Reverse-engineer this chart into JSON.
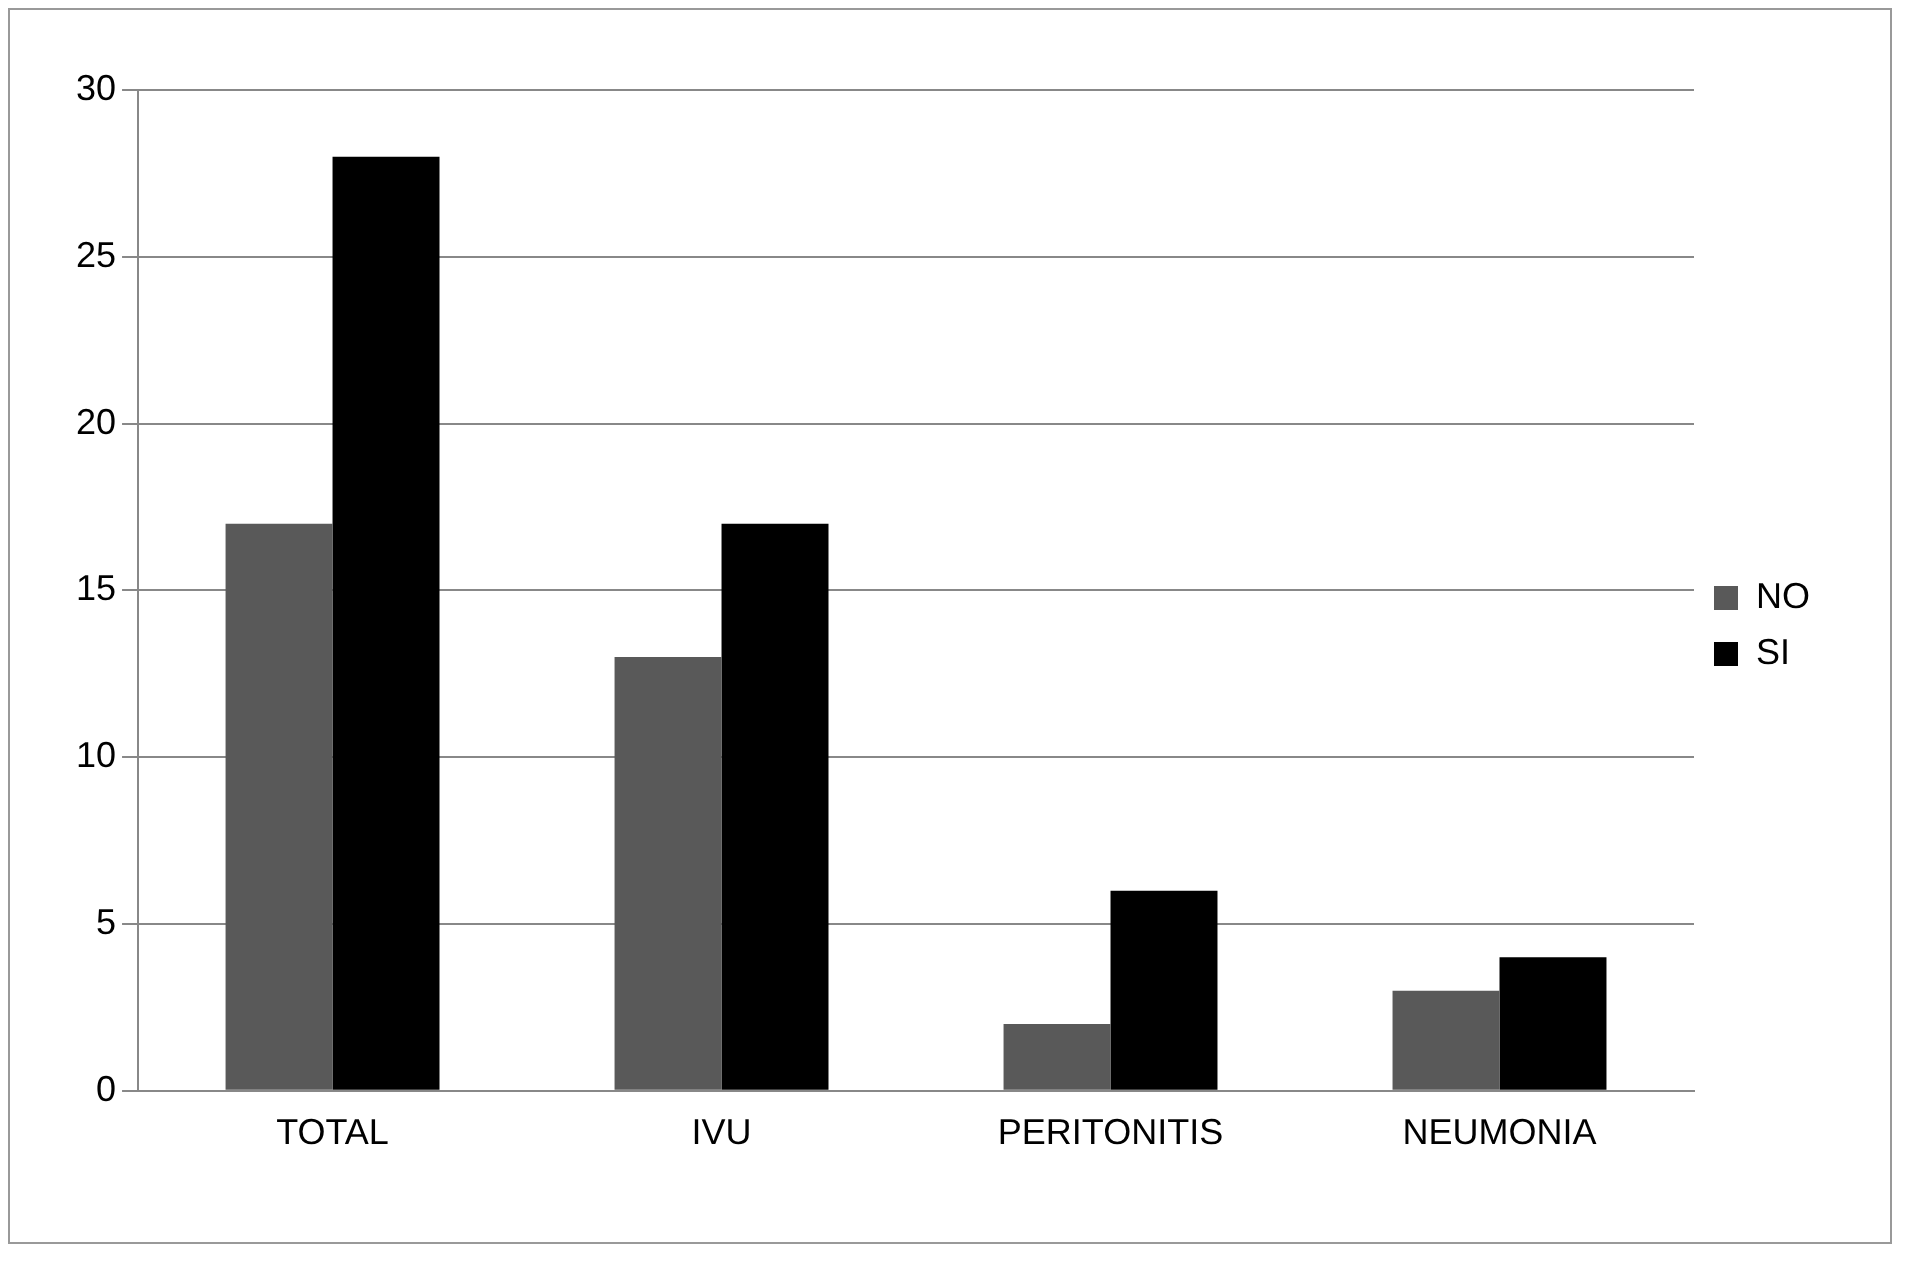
{
  "chart_data": {
    "type": "bar",
    "categories": [
      "TOTAL",
      "IVU",
      "PERITONITIS",
      "NEUMONIA"
    ],
    "series": [
      {
        "name": "NO",
        "color": "#595959",
        "values": [
          17,
          13,
          2,
          3
        ]
      },
      {
        "name": "SI",
        "color": "#000000",
        "values": [
          28,
          17,
          6,
          4
        ]
      }
    ],
    "ylim": [
      0,
      30
    ],
    "yticks": [
      0,
      5,
      10,
      15,
      20,
      25,
      30
    ],
    "grid": "y",
    "legend": "right"
  }
}
